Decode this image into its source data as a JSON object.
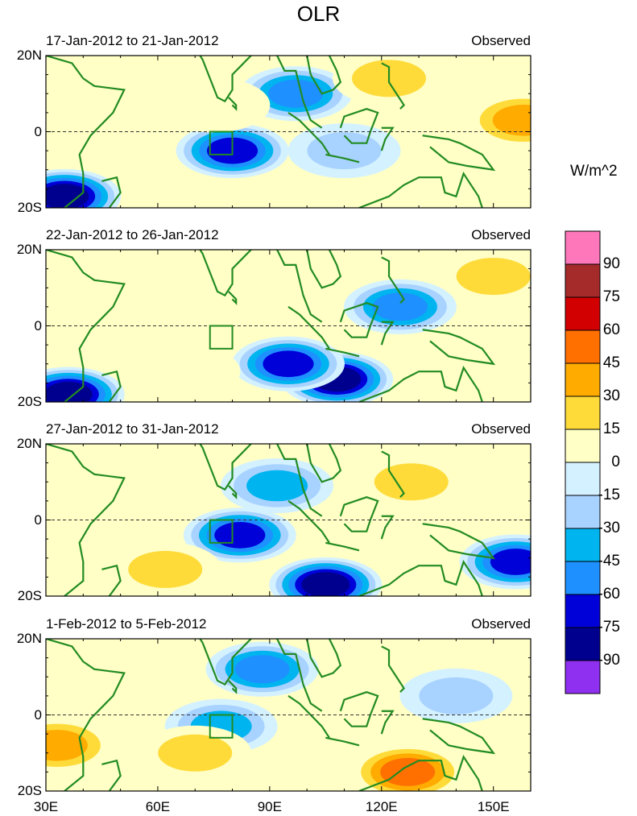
{
  "chart_data": {
    "type": "heatmap",
    "title": "OLR",
    "units": "W/m^2",
    "panels": [
      {
        "period": "17-Jan-2012 to 21-Jan-2012",
        "label": "Observed",
        "anomalies": [
          {
            "lon": 80,
            "lat": -5,
            "value": -75
          },
          {
            "lon": 97,
            "lat": 10,
            "value": -60
          },
          {
            "lon": 35,
            "lat": -17,
            "value": -90
          },
          {
            "lon": 110,
            "lat": -5,
            "value": -30
          },
          {
            "lon": 158,
            "lat": 3,
            "value": 45
          },
          {
            "lon": 122,
            "lat": 14,
            "value": 30
          },
          {
            "lon": 75,
            "lat": 7,
            "value": 15
          }
        ]
      },
      {
        "period": "22-Jan-2012 to 26-Jan-2012",
        "label": "Observed",
        "anomalies": [
          {
            "lon": 108,
            "lat": -14,
            "value": -90
          },
          {
            "lon": 95,
            "lat": -10,
            "value": -75
          },
          {
            "lon": 125,
            "lat": 5,
            "value": -60
          },
          {
            "lon": 36,
            "lat": -18,
            "value": -90
          },
          {
            "lon": 150,
            "lat": 13,
            "value": 30
          },
          {
            "lon": 67,
            "lat": -12,
            "value": 15
          }
        ]
      },
      {
        "period": "27-Jan-2012 to 31-Jan-2012",
        "label": "Observed",
        "anomalies": [
          {
            "lon": 82,
            "lat": -4,
            "value": -75
          },
          {
            "lon": 105,
            "lat": -17,
            "value": -90
          },
          {
            "lon": 156,
            "lat": -11,
            "value": -75
          },
          {
            "lon": 92,
            "lat": 9,
            "value": -45
          },
          {
            "lon": 128,
            "lat": 10,
            "value": 30
          },
          {
            "lon": 62,
            "lat": -13,
            "value": 30
          }
        ]
      },
      {
        "period": "1-Feb-2012 to 5-Feb-2012",
        "label": "Observed",
        "anomalies": [
          {
            "lon": 77,
            "lat": -3,
            "value": -45
          },
          {
            "lon": 88,
            "lat": 12,
            "value": -60
          },
          {
            "lon": 127,
            "lat": -15,
            "value": 60
          },
          {
            "lon": 33,
            "lat": -8,
            "value": 45
          },
          {
            "lon": 70,
            "lat": -10,
            "value": 30
          },
          {
            "lon": 140,
            "lat": 5,
            "value": -30
          }
        ]
      }
    ],
    "lat_ticks": [
      {
        "value": 20,
        "label": "20N"
      },
      {
        "value": 0,
        "label": "0"
      },
      {
        "value": -20,
        "label": "20S"
      }
    ],
    "lon_ticks": [
      {
        "value": 30,
        "label": "30E"
      },
      {
        "value": 60,
        "label": "60E"
      },
      {
        "value": 90,
        "label": "90E"
      },
      {
        "value": 120,
        "label": "120E"
      },
      {
        "value": 150,
        "label": "150E"
      }
    ],
    "xlim": [
      30,
      160
    ],
    "ylim": [
      -20,
      20
    ],
    "colorbar": {
      "levels": [
        "90",
        "75",
        "60",
        "45",
        "30",
        "15",
        "0",
        "-15",
        "-30",
        "-45",
        "-60",
        "-75",
        "-90"
      ],
      "colors": [
        "#ff77bb",
        "#a52a2a",
        "#d20000",
        "#ff7000",
        "#ffab00",
        "#ffdb3a",
        "#ffffc6",
        "#d4f1ff",
        "#a8d2ff",
        "#00b4f0",
        "#1e90ff",
        "#0000d9",
        "#00008f",
        "#8f2ff0"
      ]
    }
  }
}
